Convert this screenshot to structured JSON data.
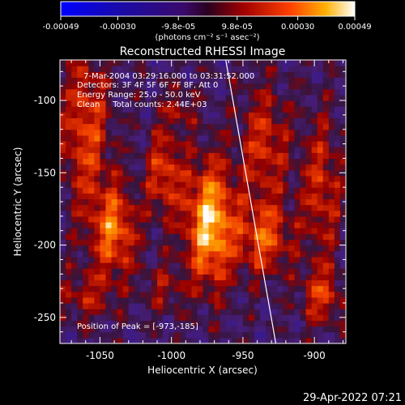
{
  "chart_data": {
    "type": "heatmap",
    "title": "Reconstructed RHESSI Image",
    "xlabel": "Heliocentric X (arcsec)",
    "ylabel": "Heliocentric Y (arcsec)",
    "xlim": [
      -1078,
      -878
    ],
    "ylim": [
      -268,
      -72
    ],
    "x_ticks": [
      "-1050",
      "-1000",
      "-950",
      "-900"
    ],
    "x_tick_values": [
      -1050,
      -1000,
      -950,
      -900
    ],
    "y_ticks": [
      "-100",
      "-150",
      "-200",
      "-250"
    ],
    "y_tick_values": [
      -100,
      -150,
      -200,
      -250
    ],
    "colorbar": {
      "ticks": [
        "-0.00049",
        "-0.00030",
        "-9.8e-05",
        "9.8e-05",
        "0.00030",
        "0.00049"
      ],
      "tick_values": [
        -0.00049,
        -0.0003,
        -9.8e-05,
        9.8e-05,
        0.0003,
        0.00049
      ],
      "unit_label": "(photons cm⁻² s⁻¹ asec⁻²)",
      "range": [
        -0.00049,
        0.00049
      ]
    },
    "annotations": [
      "7-Mar-2004 03:29:16.000 to 03:31:52.000",
      "Detectors: 3F 4F 5F 6F 7F 8F, Att 0",
      "Energy Range: 25.0 - 50.0 keV",
      "Clean     Total counts: 2.44E+03"
    ],
    "peak_label": "Position of Peak = [-973,-185]",
    "peak": [
      -973,
      -185
    ],
    "limb_line": [
      [
        -962,
        -72
      ],
      [
        -927,
        -268
      ]
    ],
    "emission_sources": [
      {
        "x": -973,
        "y": -185,
        "sx": 12,
        "sy": 30,
        "amp": 1.0
      },
      {
        "x": -1040,
        "y": -190,
        "sx": 11,
        "sy": 22,
        "amp": 0.72
      },
      {
        "x": -1060,
        "y": -120,
        "sx": 12,
        "sy": 40,
        "amp": 0.58
      },
      {
        "x": -1005,
        "y": -150,
        "sx": 9,
        "sy": 22,
        "amp": 0.55
      },
      {
        "x": -935,
        "y": -195,
        "sx": 13,
        "sy": 18,
        "amp": 0.62
      },
      {
        "x": -935,
        "y": -130,
        "sx": 12,
        "sy": 28,
        "amp": 0.5
      },
      {
        "x": -895,
        "y": -160,
        "sx": 10,
        "sy": 35,
        "amp": 0.48
      },
      {
        "x": -895,
        "y": -235,
        "sx": 10,
        "sy": 14,
        "amp": 0.5
      },
      {
        "x": -1060,
        "y": -235,
        "sx": 14,
        "sy": 12,
        "amp": 0.35
      },
      {
        "x": -1005,
        "y": -230,
        "sx": 10,
        "sy": 12,
        "amp": 0.3
      },
      {
        "x": -995,
        "y": -105,
        "sx": 8,
        "sy": 10,
        "amp": 0.3
      }
    ]
  },
  "footer_timestamp": "29-Apr-2022 07:21"
}
